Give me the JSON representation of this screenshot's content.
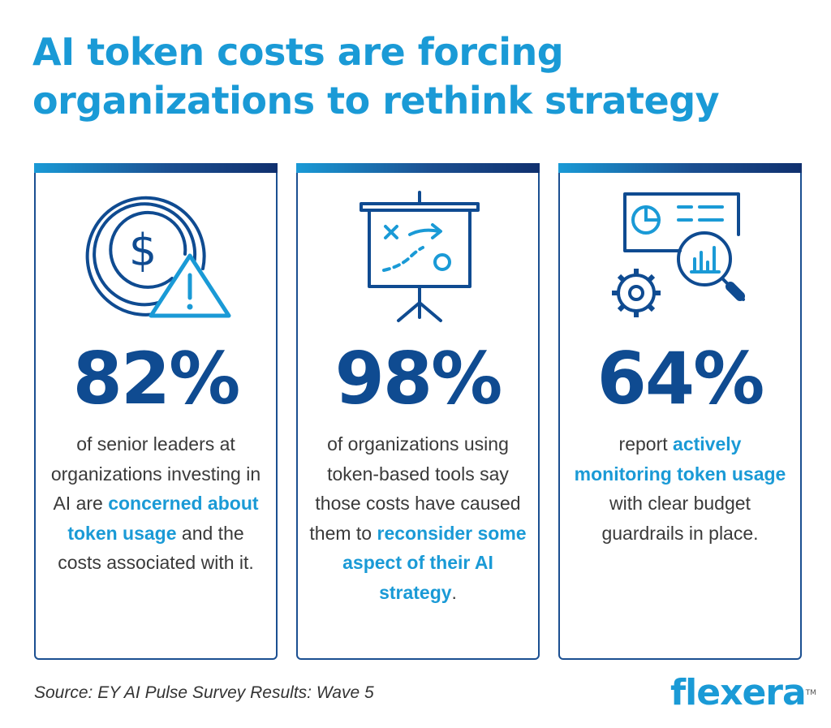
{
  "title": {
    "line1": "AI token costs are forcing",
    "line2": "organizations to rethink strategy"
  },
  "colors": {
    "title": "#1a9ad6",
    "stat": "#0f4b91",
    "highlight": "#1a9ad6",
    "border": "#1b4f91",
    "icon_dark": "#0f4b91",
    "icon_light": "#1a9ad6"
  },
  "cards": [
    {
      "icon": "dollar-coin-warning-icon",
      "stat": "82%",
      "desc": [
        {
          "text": "of senior leaders at organizations investing in AI are ",
          "hl": false
        },
        {
          "text": "concerned about token usage",
          "hl": true
        },
        {
          "text": " and the costs associated with it.",
          "hl": false
        }
      ]
    },
    {
      "icon": "strategy-presentation-board-icon",
      "stat": "98%",
      "desc": [
        {
          "text": "of organizations using token-based tools say those costs have caused them to ",
          "hl": false
        },
        {
          "text": "reconsider some aspect of their AI strategy",
          "hl": true
        },
        {
          "text": ".",
          "hl": false
        }
      ]
    },
    {
      "icon": "dashboard-magnifier-gear-icon",
      "stat": "64%",
      "desc": [
        {
          "text": "report ",
          "hl": false
        },
        {
          "text": "actively monitoring token usage",
          "hl": true
        },
        {
          "text": " with clear budget guardrails in place.",
          "hl": false
        }
      ]
    }
  ],
  "source": "Source: EY AI Pulse Survey Results: Wave 5",
  "logo": {
    "text": "flexera",
    "tm": "TM"
  }
}
